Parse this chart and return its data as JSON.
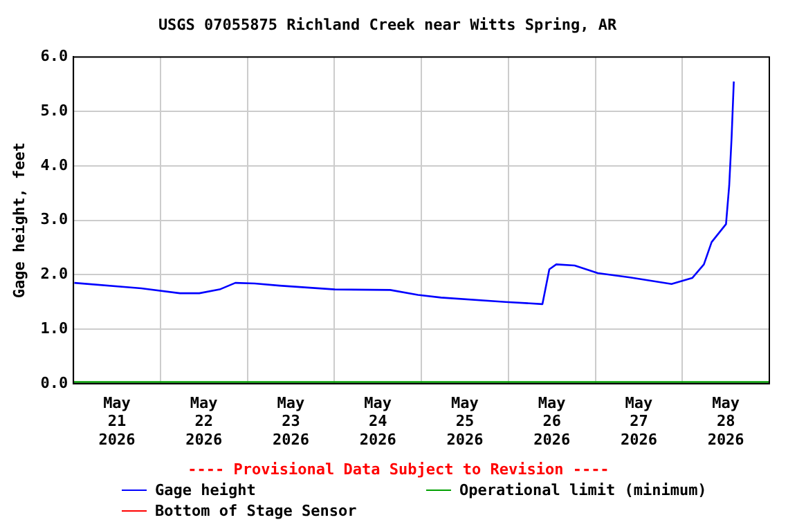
{
  "chart_data": {
    "type": "line",
    "title": "USGS 07055875 Richland Creek near Witts Spring, AR",
    "ylabel": "Gage height, feet",
    "annotations": [
      "---- Provisional Data Subject to Revision ----"
    ],
    "xlim": [
      "2026-05-21T00:00",
      "2026-05-29T00:00"
    ],
    "xticks": [
      {
        "value": "2026-05-21T00:00",
        "label": null
      },
      {
        "value": "2026-05-21T12:00",
        "label": "May 21 2026"
      },
      {
        "value": "2026-05-22T00:00",
        "label": null
      },
      {
        "value": "2026-05-22T12:00",
        "label": "May 22 2026"
      },
      {
        "value": "2026-05-23T00:00",
        "label": null
      },
      {
        "value": "2026-05-23T12:00",
        "label": "May 23 2026"
      },
      {
        "value": "2026-05-24T00:00",
        "label": null
      },
      {
        "value": "2026-05-24T12:00",
        "label": "May 24 2026"
      },
      {
        "value": "2026-05-25T00:00",
        "label": null
      },
      {
        "value": "2026-05-25T12:00",
        "label": "May 25 2026"
      },
      {
        "value": "2026-05-26T00:00",
        "label": null
      },
      {
        "value": "2026-05-26T12:00",
        "label": "May 26 2026"
      },
      {
        "value": "2026-05-27T00:00",
        "label": null
      },
      {
        "value": "2026-05-27T12:00",
        "label": "May 27 2026"
      },
      {
        "value": "2026-05-28T00:00",
        "label": null
      },
      {
        "value": "2026-05-28T12:00",
        "label": "May 28 2026"
      },
      {
        "value": "2026-05-29T00:00",
        "label": null
      }
    ],
    "ylim": [
      0,
      6
    ],
    "yticks": [
      {
        "value": 0,
        "label": "0.0"
      },
      {
        "value": 1,
        "label": "1.0"
      },
      {
        "value": 2,
        "label": "2.0"
      },
      {
        "value": 3,
        "label": "3.0"
      },
      {
        "value": 4,
        "label": "4.0"
      },
      {
        "value": 5,
        "label": "5.0"
      },
      {
        "value": 6,
        "label": "6.0"
      }
    ],
    "grid": true,
    "legend": "bottom",
    "marker": "none",
    "line_style": "solid",
    "series": [
      {
        "name": "Gage height",
        "color": "#0000ff",
        "x": [
          "2026-05-21T00:15",
          "2026-05-21T18:42",
          "2026-05-22T05:24",
          "2026-05-22T10:44",
          "2026-05-22T16:21",
          "2026-05-22T20:40",
          "2026-05-23T02:00",
          "2026-05-23T08:53",
          "2026-05-24T00:09",
          "2026-05-24T15:24",
          "2026-05-24T23:02",
          "2026-05-25T05:25",
          "2026-05-25T23:13",
          "2026-05-26T09:24",
          "2026-05-26T11:18",
          "2026-05-26T13:13",
          "2026-05-26T18:17",
          "2026-05-27T00:40",
          "2026-05-27T09:33",
          "2026-05-27T21:01",
          "2026-05-28T02:44",
          "2026-05-28T05:57",
          "2026-05-28T08:05",
          "2026-05-28T12:03",
          "2026-05-28T12:56",
          "2026-05-28T13:35",
          "2026-05-28T14:12"
        ],
        "values": [
          1.85,
          1.75,
          1.66,
          1.66,
          1.73,
          1.85,
          1.84,
          1.8,
          1.73,
          1.72,
          1.63,
          1.58,
          1.5,
          1.46,
          2.1,
          2.19,
          2.17,
          2.03,
          1.95,
          1.83,
          1.94,
          2.19,
          2.6,
          2.93,
          3.64,
          4.51,
          5.55
        ]
      },
      {
        "name": "Operational limit (minimum)",
        "color": "#00a000",
        "x": [
          "2026-05-21T00:00",
          "2026-05-29T00:00"
        ],
        "values": [
          0.03,
          0.03
        ]
      },
      {
        "name": "Bottom of Stage Sensor",
        "color": "#ff0000"
      }
    ]
  }
}
